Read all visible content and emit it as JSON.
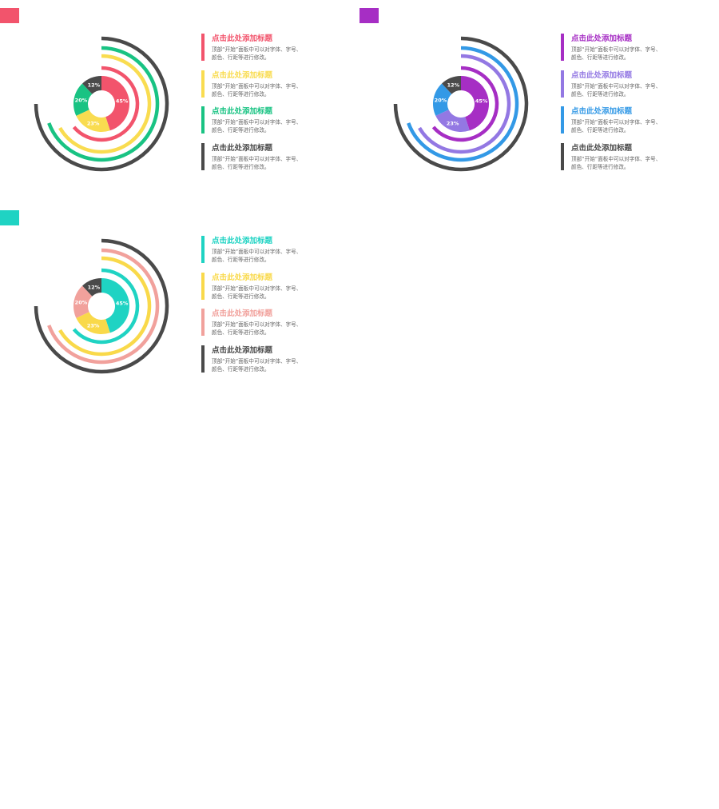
{
  "chart_data": [
    {
      "type": "pie",
      "swatch_color": "#f2546c",
      "slices": [
        {
          "label": "45%",
          "value": 45,
          "color": "#f2546c"
        },
        {
          "label": "23%",
          "value": 23,
          "color": "#f9dc50"
        },
        {
          "label": "20%",
          "value": 20,
          "color": "#19c383"
        },
        {
          "label": "12%",
          "value": 12,
          "color": "#4a4a4a"
        }
      ],
      "rings": [
        {
          "color": "#f2546c",
          "arc_degrees": 230
        },
        {
          "color": "#f9dc50",
          "arc_degrees": 240
        },
        {
          "color": "#19c383",
          "arc_degrees": 250
        },
        {
          "color": "#4a4a4a",
          "arc_degrees": 270
        }
      ],
      "legend": [
        {
          "title": "点击此处添加标题",
          "desc1": "顶部“开始”面板中可以对字体、字号、",
          "desc2": "颜色、行距等进行修改。",
          "color": "#f2546c"
        },
        {
          "title": "点击此处添加标题",
          "desc1": "顶部“开始”面板中可以对字体、字号、",
          "desc2": "颜色、行距等进行修改。",
          "color": "#f9dc50"
        },
        {
          "title": "点击此处添加标题",
          "desc1": "顶部“开始”面板中可以对字体、字号、",
          "desc2": "颜色、行距等进行修改。",
          "color": "#19c383"
        },
        {
          "title": "点击此处添加标题",
          "desc1": "顶部“开始”面板中可以对字体、字号、",
          "desc2": "颜色、行距等进行修改。",
          "color": "#4a4a4a"
        }
      ]
    },
    {
      "type": "pie",
      "swatch_color": "#a62ec4",
      "slices": [
        {
          "label": "45%",
          "value": 45,
          "color": "#a62ec4"
        },
        {
          "label": "23%",
          "value": 23,
          "color": "#9378e3"
        },
        {
          "label": "20%",
          "value": 20,
          "color": "#3399e6"
        },
        {
          "label": "12%",
          "value": 12,
          "color": "#4a4a4a"
        }
      ],
      "rings": [
        {
          "color": "#a62ec4",
          "arc_degrees": 230
        },
        {
          "color": "#9378e3",
          "arc_degrees": 240
        },
        {
          "color": "#3399e6",
          "arc_degrees": 250
        },
        {
          "color": "#4a4a4a",
          "arc_degrees": 270
        }
      ],
      "legend": [
        {
          "title": "点击此处添加标题",
          "desc1": "顶部“开始”面板中可以对字体、字号、",
          "desc2": "颜色、行距等进行修改。",
          "color": "#a62ec4"
        },
        {
          "title": "点击此处添加标题",
          "desc1": "顶部“开始”面板中可以对字体、字号、",
          "desc2": "颜色、行距等进行修改。",
          "color": "#9378e3"
        },
        {
          "title": "点击此处添加标题",
          "desc1": "顶部“开始”面板中可以对字体、字号、",
          "desc2": "颜色、行距等进行修改。",
          "color": "#3399e6"
        },
        {
          "title": "点击此处添加标题",
          "desc1": "顶部“开始”面板中可以对字体、字号、",
          "desc2": "颜色、行距等进行修改。",
          "color": "#4a4a4a"
        }
      ]
    },
    {
      "type": "pie",
      "swatch_color": "#1fd3c3",
      "slices": [
        {
          "label": "45%",
          "value": 45,
          "color": "#1fd3c3"
        },
        {
          "label": "23%",
          "value": 23,
          "color": "#f9d94a"
        },
        {
          "label": "20%",
          "value": 20,
          "color": "#f1a19c"
        },
        {
          "label": "12%",
          "value": 12,
          "color": "#4a4a4a"
        }
      ],
      "rings": [
        {
          "color": "#1fd3c3",
          "arc_degrees": 230
        },
        {
          "color": "#f9d94a",
          "arc_degrees": 240
        },
        {
          "color": "#f1a19c",
          "arc_degrees": 250
        },
        {
          "color": "#4a4a4a",
          "arc_degrees": 270
        }
      ],
      "legend": [
        {
          "title": "点击此处添加标题",
          "desc1": "顶部“开始”面板中可以对字体、字号、",
          "desc2": "颜色、行距等进行修改。",
          "color": "#1fd3c3"
        },
        {
          "title": "点击此处添加标题",
          "desc1": "顶部“开始”面板中可以对字体、字号、",
          "desc2": "颜色、行距等进行修改。",
          "color": "#f9d94a"
        },
        {
          "title": "点击此处添加标题",
          "desc1": "顶部“开始”面板中可以对字体、字号、",
          "desc2": "颜色、行距等进行修改。",
          "color": "#f1a19c"
        },
        {
          "title": "点击此处添加标题",
          "desc1": "顶部“开始”面板中可以对字体、字号、",
          "desc2": "颜色、行距等进行修改。",
          "color": "#4a4a4a"
        }
      ]
    }
  ]
}
